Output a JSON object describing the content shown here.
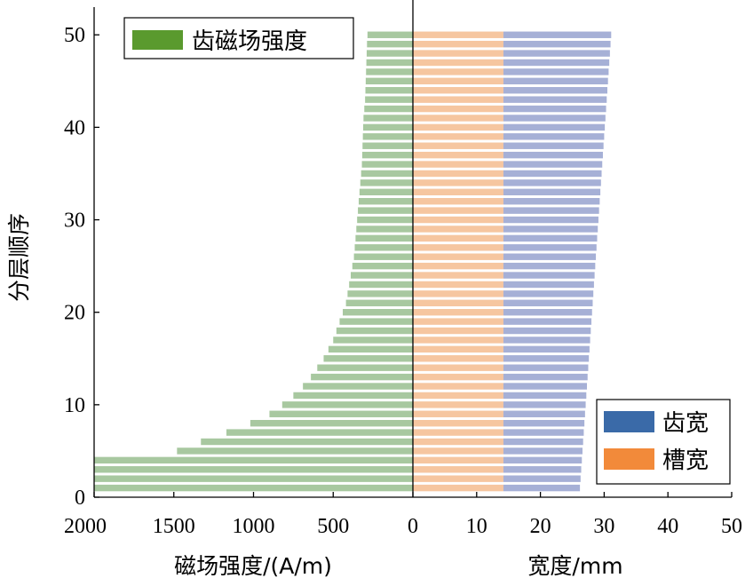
{
  "chart_data": {
    "type": "bar",
    "orientation": "horizontal",
    "ylabel": "分层顺序",
    "yticks": [
      "0",
      "10",
      "20",
      "30",
      "40",
      "50"
    ],
    "ylim": [
      0,
      53
    ],
    "layers": [
      1,
      2,
      3,
      4,
      5,
      6,
      7,
      8,
      9,
      10,
      11,
      12,
      13,
      14,
      15,
      16,
      17,
      18,
      19,
      20,
      21,
      22,
      23,
      24,
      25,
      26,
      27,
      28,
      29,
      30,
      31,
      32,
      33,
      34,
      35,
      36,
      37,
      38,
      39,
      40,
      41,
      42,
      43,
      44,
      45,
      46,
      47,
      48,
      49,
      50
    ],
    "left_panel": {
      "xlabel": "磁场强度/(A/m)",
      "xticks": [
        "2000",
        "1500",
        "1000",
        "500",
        "0"
      ],
      "xlim": [
        0,
        2000
      ],
      "direction": "reversed",
      "series": [
        {
          "name": "齿磁场强度",
          "color": "#a8c8a0",
          "legend_color": "#5a9a2e",
          "values": [
            2000,
            2000,
            2000,
            2000,
            1480,
            1330,
            1170,
            1020,
            900,
            820,
            750,
            690,
            640,
            600,
            560,
            530,
            500,
            480,
            460,
            440,
            420,
            410,
            400,
            390,
            380,
            370,
            365,
            360,
            355,
            350,
            345,
            340,
            335,
            330,
            325,
            320,
            318,
            316,
            314,
            312,
            310,
            305,
            300,
            298,
            296,
            294,
            292,
            290,
            288,
            285
          ]
        }
      ]
    },
    "right_panel": {
      "xlabel": "宽度/mm",
      "xticks": [
        "0",
        "10",
        "20",
        "30",
        "40",
        "50"
      ],
      "xlim": [
        0,
        50
      ],
      "series": [
        {
          "name": "槽宽",
          "color": "#f6c6a0",
          "legend_color": "#f28a3a",
          "values": [
            14.2,
            14.2,
            14.2,
            14.2,
            14.2,
            14.2,
            14.2,
            14.2,
            14.2,
            14.2,
            14.2,
            14.2,
            14.2,
            14.2,
            14.2,
            14.2,
            14.2,
            14.2,
            14.2,
            14.2,
            14.2,
            14.2,
            14.2,
            14.2,
            14.2,
            14.2,
            14.2,
            14.2,
            14.2,
            14.2,
            14.2,
            14.2,
            14.2,
            14.2,
            14.2,
            14.2,
            14.2,
            14.2,
            14.2,
            14.2,
            14.2,
            14.2,
            14.2,
            14.2,
            14.2,
            14.2,
            14.2,
            14.2,
            14.2,
            14.2
          ]
        },
        {
          "name": "齿宽",
          "color": "#a6b0d6",
          "legend_color": "#3a6aa8",
          "values": [
            12.0,
            12.1,
            12.2,
            12.3,
            12.4,
            12.5,
            12.6,
            12.7,
            12.8,
            12.9,
            13.0,
            13.1,
            13.2,
            13.3,
            13.4,
            13.5,
            13.6,
            13.7,
            13.8,
            13.9,
            14.0,
            14.1,
            14.2,
            14.3,
            14.4,
            14.5,
            14.6,
            14.7,
            14.8,
            14.9,
            15.0,
            15.1,
            15.2,
            15.3,
            15.4,
            15.5,
            15.6,
            15.7,
            15.8,
            15.9,
            16.0,
            16.1,
            16.2,
            16.3,
            16.4,
            16.5,
            16.6,
            16.7,
            16.8,
            16.9
          ]
        }
      ]
    },
    "legend_left": {
      "placement": "top-left",
      "entries": [
        "齿磁场强度"
      ]
    },
    "legend_right": {
      "placement": "bottom-right",
      "entries": [
        "齿宽",
        "槽宽"
      ]
    }
  }
}
